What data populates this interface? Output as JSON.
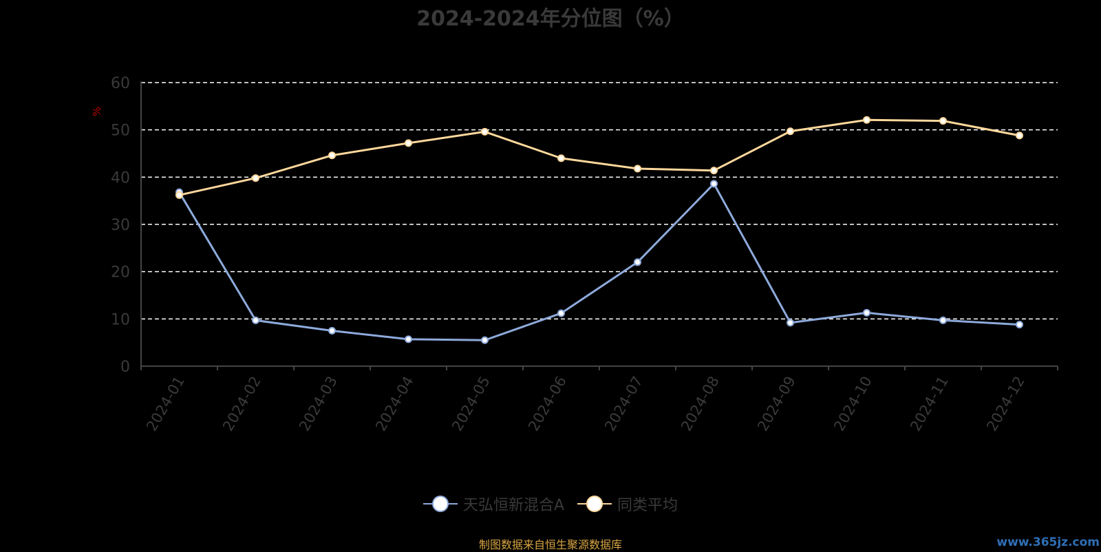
{
  "chart_data": {
    "type": "line",
    "title": "2024-2024年分位图（%）",
    "ylabel": "%",
    "ylim": [
      0,
      60
    ],
    "yticks": [
      0,
      10,
      20,
      30,
      40,
      50,
      60
    ],
    "grid": true,
    "legend_position": "bottom",
    "categories": [
      "2024-01",
      "2024-02",
      "2024-03",
      "2024-04",
      "2024-05",
      "2024-06",
      "2024-07",
      "2024-08",
      "2024-09",
      "2024-10",
      "2024-11",
      "2024-12"
    ],
    "series": [
      {
        "name": "天弘恒新混合A",
        "color": "#8eaadb",
        "values": [
          36.8,
          9.7,
          7.5,
          5.7,
          5.5,
          11.2,
          22.0,
          38.6,
          9.2,
          11.3,
          9.7,
          8.8
        ]
      },
      {
        "name": "同类平均",
        "color": "#ffd89c",
        "values": [
          36.2,
          39.8,
          44.6,
          47.2,
          49.6,
          44.0,
          41.8,
          41.4,
          49.7,
          52.1,
          51.9,
          48.8
        ]
      }
    ]
  },
  "footer": {
    "source": "制图数据来自恒生聚源数据库",
    "watermark": "www.365jz.com"
  }
}
